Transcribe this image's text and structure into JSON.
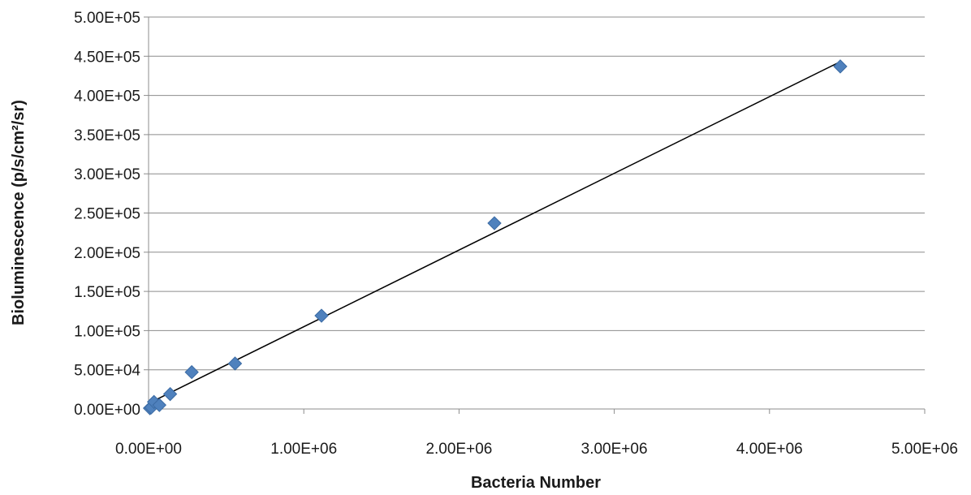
{
  "chart_data": {
    "type": "scatter",
    "title": "",
    "xlabel": "Bacteria Number",
    "ylabel": "Bioluminescence (p/s/cm²/sr)",
    "xlim": [
      0,
      5000000
    ],
    "ylim": [
      0,
      500000
    ],
    "x_ticks": [
      0,
      1000000,
      2000000,
      3000000,
      4000000,
      5000000
    ],
    "x_tick_labels": [
      "0.00E+00",
      "1.00E+06",
      "2.00E+06",
      "3.00E+06",
      "4.00E+06",
      "5.00E+06"
    ],
    "y_ticks": [
      0,
      50000,
      100000,
      150000,
      200000,
      250000,
      300000,
      350000,
      400000,
      450000,
      500000
    ],
    "y_tick_labels": [
      "0.00E+00",
      "5.00E+04",
      "1.00E+05",
      "1.50E+05",
      "2.00E+05",
      "2.50E+05",
      "3.00E+05",
      "3.50E+05",
      "4.00E+05",
      "4.50E+05",
      "5.00E+05"
    ],
    "grid": "horizontal",
    "legend": "none",
    "series": [
      {
        "marker": "diamond",
        "color": "#4f81bd",
        "points": [
          {
            "x": 8700,
            "y": 1000
          },
          {
            "x": 17400,
            "y": 2000
          },
          {
            "x": 34800,
            "y": 9000
          },
          {
            "x": 69600,
            "y": 5000
          },
          {
            "x": 139000,
            "y": 19000
          },
          {
            "x": 278000,
            "y": 47000
          },
          {
            "x": 557000,
            "y": 58000
          },
          {
            "x": 1114000,
            "y": 119000
          },
          {
            "x": 2228000,
            "y": 237000
          },
          {
            "x": 4456000,
            "y": 437000
          }
        ]
      }
    ],
    "trendline": {
      "type": "linear",
      "color": "#000000",
      "x_start": 8700,
      "y_start": 8000,
      "x_end": 4456000,
      "y_end": 443000
    }
  }
}
